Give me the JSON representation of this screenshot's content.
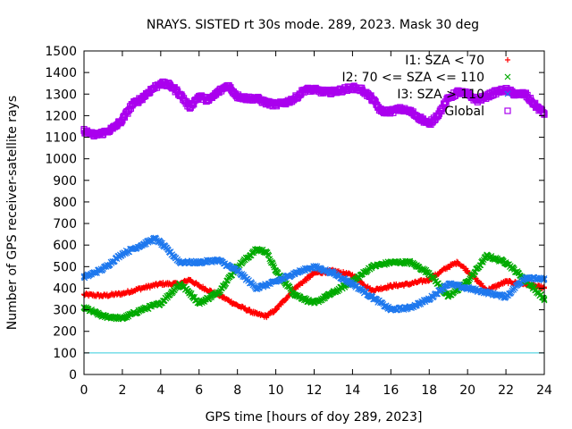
{
  "chart_data": {
    "type": "scatter",
    "title": "NRAYS. SISTED rt 30s mode. 289, 2023. Mask 30 deg",
    "xlabel": "GPS time [hours of doy 289, 2023]",
    "ylabel": "Number of GPS receiver-satellite rays",
    "xlim": [
      0,
      24
    ],
    "ylim": [
      0,
      1500
    ],
    "xticks": [
      0,
      2,
      4,
      6,
      8,
      10,
      12,
      14,
      16,
      18,
      20,
      22,
      24
    ],
    "yticks": [
      0,
      100,
      200,
      300,
      400,
      500,
      600,
      700,
      800,
      900,
      1000,
      1100,
      1200,
      1300,
      1400,
      1500
    ],
    "reference_line": {
      "y": 100,
      "color": "#33ccdd"
    },
    "legend_position": "top-right",
    "series": [
      {
        "name": "I1: SZA < 70",
        "color": "#ff0000",
        "marker": "+",
        "x": [
          0,
          1,
          2,
          3,
          4,
          5,
          5.5,
          6,
          7,
          8,
          9,
          9.5,
          10,
          11,
          12,
          13,
          14,
          15,
          16,
          17,
          18,
          19,
          19.5,
          20,
          21,
          22,
          23,
          24
        ],
        "values": [
          370,
          365,
          375,
          400,
          420,
          420,
          440,
          410,
          370,
          320,
          280,
          270,
          300,
          400,
          470,
          480,
          460,
          390,
          410,
          420,
          440,
          500,
          520,
          480,
          390,
          430,
          420,
          400
        ]
      },
      {
        "name": "I2: 70 <= SZA <= 110",
        "color": "#00aa00",
        "marker": "x",
        "x": [
          0,
          1,
          2,
          3,
          4,
          5,
          5.5,
          6,
          7,
          8,
          9,
          9.5,
          10,
          11,
          12,
          13,
          14,
          15,
          16,
          17,
          18,
          19,
          20,
          21,
          22,
          23,
          24
        ],
        "values": [
          310,
          270,
          260,
          300,
          330,
          420,
          380,
          330,
          380,
          500,
          580,
          570,
          480,
          370,
          330,
          380,
          430,
          500,
          520,
          520,
          470,
          360,
          430,
          550,
          520,
          440,
          350
        ]
      },
      {
        "name": "I3: SZA > 110",
        "color": "#1e78ee",
        "marker": "x",
        "x": [
          0,
          1,
          2,
          3,
          3.7,
          4,
          5,
          6,
          7,
          8,
          9,
          10,
          11,
          12,
          13,
          14,
          15,
          16,
          17,
          18,
          19,
          20,
          21,
          22,
          23,
          24
        ],
        "values": [
          450,
          490,
          560,
          600,
          630,
          610,
          520,
          520,
          530,
          480,
          400,
          430,
          470,
          500,
          470,
          420,
          360,
          300,
          310,
          350,
          420,
          400,
          380,
          360,
          450,
          440
        ]
      },
      {
        "name": "Global",
        "color": "#aa00ee",
        "marker": "square",
        "x": [
          0,
          0.5,
          1,
          1.5,
          2,
          2.5,
          3,
          3.5,
          4,
          4.5,
          5,
          5.5,
          6,
          6.5,
          7,
          7.5,
          8,
          8.5,
          9,
          9.5,
          10,
          10.5,
          11,
          11.5,
          12,
          12.5,
          13,
          13.5,
          14,
          14.5,
          15,
          15.5,
          16,
          16.5,
          17,
          17.5,
          18,
          18.5,
          19,
          19.5,
          20,
          20.5,
          21,
          21.5,
          22,
          22.5,
          23,
          23.5,
          24
        ],
        "values": [
          1130,
          1110,
          1120,
          1140,
          1180,
          1250,
          1280,
          1320,
          1350,
          1340,
          1300,
          1240,
          1290,
          1270,
          1310,
          1340,
          1290,
          1280,
          1280,
          1260,
          1250,
          1260,
          1280,
          1320,
          1320,
          1310,
          1310,
          1320,
          1330,
          1320,
          1280,
          1220,
          1220,
          1230,
          1220,
          1190,
          1160,
          1210,
          1280,
          1310,
          1300,
          1270,
          1290,
          1310,
          1320,
          1300,
          1300,
          1250,
          1210
        ]
      }
    ]
  }
}
